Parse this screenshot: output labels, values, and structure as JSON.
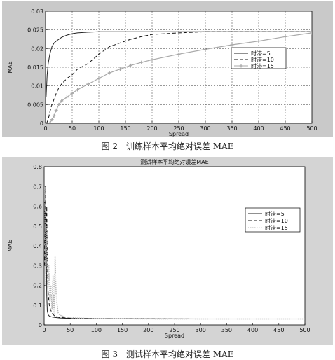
{
  "figures": [
    {
      "caption": "图 2　训练样本平均绝对误差 MAE",
      "chart_data": {
        "type": "line",
        "title": "",
        "xlabel": "Spread",
        "ylabel": "MAE",
        "xlim": [
          0,
          500
        ],
        "ylim": [
          0,
          0.03
        ],
        "xticks": [
          0,
          50,
          100,
          150,
          200,
          250,
          300,
          350,
          400,
          450,
          500
        ],
        "yticks": [
          0,
          0.005,
          0.01,
          0.015,
          0.02,
          0.025,
          0.03
        ],
        "ytick_labels": [
          "0",
          "0.005",
          "0.01",
          "0.015",
          "0.02",
          "0.025",
          "0.03"
        ],
        "grid": true,
        "legend_position": "right",
        "series": [
          {
            "name": "时滞=5",
            "style": "solid",
            "color": "#222222",
            "x": [
              1,
              3,
              5,
              8,
              12,
              16,
              20,
              25,
              30,
              40,
              50,
              60,
              80,
              100,
              130,
              160,
              200,
              250,
              300,
              350,
              400,
              450,
              500
            ],
            "y": [
              0.007,
              0.013,
              0.016,
              0.0185,
              0.0205,
              0.0215,
              0.022,
              0.0225,
              0.023,
              0.0236,
              0.024,
              0.0242,
              0.0244,
              0.0245,
              0.0245,
              0.0245,
              0.0245,
              0.0245,
              0.0245,
              0.0245,
              0.0245,
              0.0245,
              0.0245
            ]
          },
          {
            "name": "时滞=10",
            "style": "dashed",
            "color": "#111111",
            "x": [
              2,
              5,
              8,
              12,
              16,
              20,
              25,
              30,
              40,
              50,
              60,
              80,
              100,
              120,
              140,
              160,
              180,
              200,
              250,
              300,
              350,
              400,
              450,
              500
            ],
            "y": [
              0.0,
              0.001,
              0.003,
              0.005,
              0.0065,
              0.008,
              0.0095,
              0.0105,
              0.012,
              0.013,
              0.0145,
              0.016,
              0.0185,
              0.0205,
              0.0215,
              0.0225,
              0.0232,
              0.0238,
              0.0242,
              0.0245,
              0.0245,
              0.0245,
              0.0245,
              0.0245
            ]
          },
          {
            "name": "时滞=15",
            "style": "plus-markers",
            "color": "#a8a8a8",
            "x": [
              8,
              12,
              16,
              20,
              25,
              30,
              40,
              50,
              60,
              80,
              100,
              120,
              140,
              160,
              180,
              200,
              250,
              300,
              350,
              400,
              450,
              500
            ],
            "y": [
              0.0,
              0.001,
              0.002,
              0.0035,
              0.005,
              0.006,
              0.007,
              0.008,
              0.009,
              0.0105,
              0.012,
              0.0135,
              0.0145,
              0.0155,
              0.0163,
              0.017,
              0.0185,
              0.0198,
              0.021,
              0.022,
              0.0232,
              0.0242
            ]
          }
        ]
      }
    },
    {
      "caption": "图 3　测试样本平均绝对误差 MAE",
      "chart_data": {
        "type": "line",
        "title": "测试样本平均绝对误差MAE",
        "xlabel": "Spread",
        "ylabel": "MAE",
        "xlim": [
          0,
          500
        ],
        "ylim": [
          0,
          0.8
        ],
        "xticks": [
          0,
          50,
          100,
          150,
          200,
          250,
          300,
          350,
          400,
          450,
          500
        ],
        "yticks": [
          0,
          0.1,
          0.2,
          0.3,
          0.4,
          0.5,
          0.6,
          0.7,
          0.8
        ],
        "ytick_labels": [
          "0",
          "0.1",
          "0.2",
          "0.3",
          "0.4",
          "0.5",
          "0.6",
          "0.7",
          "0.8"
        ],
        "grid": false,
        "legend_position": "right",
        "series": [
          {
            "name": "时滞=5",
            "style": "solid",
            "color": "#222222",
            "x": [
              1,
              2,
              3,
              4,
              5,
              6,
              8,
              10,
              15,
              20,
              30,
              50,
              100,
              200,
              300,
              400,
              500
            ],
            "y": [
              0.62,
              0.45,
              0.3,
              0.5,
              0.15,
              0.07,
              0.05,
              0.045,
              0.04,
              0.038,
              0.035,
              0.033,
              0.032,
              0.031,
              0.03,
              0.03,
              0.03
            ]
          },
          {
            "name": "时滞=10",
            "style": "dashed",
            "color": "#111111",
            "x": [
              1,
              2,
              3,
              4,
              5,
              6,
              7,
              8,
              10,
              12,
              15,
              20,
              30,
              50,
              100,
              200,
              300,
              400,
              500
            ],
            "y": [
              0.3,
              0.55,
              0.7,
              0.4,
              0.6,
              0.35,
              0.2,
              0.15,
              0.1,
              0.08,
              0.06,
              0.045,
              0.038,
              0.034,
              0.032,
              0.031,
              0.03,
              0.03,
              0.03
            ]
          },
          {
            "name": "时滞=15",
            "style": "dotted",
            "color": "#b5b5b5",
            "x": [
              1,
              3,
              5,
              7,
              9,
              11,
              13,
              15,
              17,
              19,
              21,
              23,
              25,
              27,
              30,
              40,
              60,
              100,
              200,
              300,
              400,
              500
            ],
            "y": [
              0.7,
              0.2,
              0.5,
              0.15,
              0.3,
              0.1,
              0.2,
              0.08,
              0.25,
              0.05,
              0.35,
              0.15,
              0.1,
              0.06,
              0.05,
              0.04,
              0.035,
              0.032,
              0.03,
              0.03,
              0.03,
              0.03
            ]
          }
        ]
      }
    }
  ]
}
